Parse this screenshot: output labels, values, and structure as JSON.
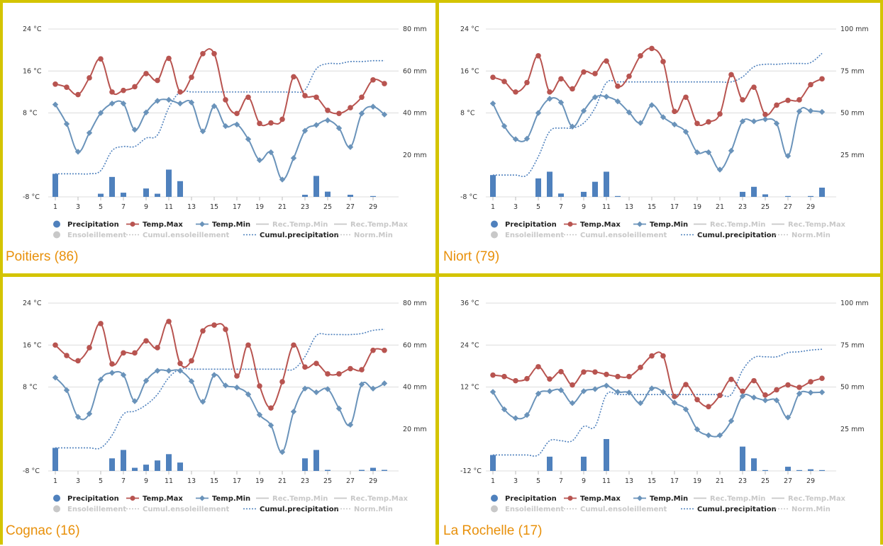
{
  "colors": {
    "frame": "#d4c400",
    "station": "#e8900a",
    "precip": "#4f81bd",
    "tmax": "#b85450",
    "tmin": "#6a93ba",
    "cumul": "#4f81bd",
    "grid": "#dcdcdc",
    "dim": "#c8c8c8"
  },
  "legend": {
    "row1": [
      {
        "label": "Precipitation",
        "type": "dot",
        "color": "#4f81bd",
        "active": true
      },
      {
        "label": "Temp.Max",
        "type": "line-dot",
        "color": "#b85450",
        "active": true
      },
      {
        "label": "Temp.Min",
        "type": "line-diamond",
        "color": "#6a93ba",
        "active": true
      },
      {
        "label": "Rec.Temp.Min",
        "type": "line",
        "color": "#c8c8c8",
        "active": false
      },
      {
        "label": "Rec.Temp.Max",
        "type": "line",
        "color": "#c8c8c8",
        "active": false
      }
    ],
    "row2": [
      {
        "label": "Ensoleillement",
        "type": "dot",
        "color": "#c8c8c8",
        "active": false
      },
      {
        "label": "Cumul.ensoleillement",
        "type": "dotted",
        "color": "#c8c8c8",
        "active": false
      },
      {
        "label": "Cumul.precipitation",
        "type": "dotted",
        "color": "#4f81bd",
        "active": true
      },
      {
        "label": "Norm.Min",
        "type": "dotted",
        "color": "#c8c8c8",
        "active": false
      }
    ]
  },
  "chart_data": [
    {
      "station": "Poitiers (86)",
      "type": "line",
      "x_ticks": [
        "1",
        "3",
        "5",
        "7",
        "9",
        "11",
        "13",
        "15",
        "17",
        "19",
        "21",
        "23",
        "25",
        "27",
        "29"
      ],
      "days": 30,
      "temp_axis": {
        "ticks": [
          "24 °C",
          "16 °C",
          "8 °C",
          "-8 °C"
        ],
        "tick_values": [
          24,
          16,
          8,
          -8
        ],
        "ylim": [
          -8,
          24
        ]
      },
      "precip_axis": {
        "ticks": [
          "80 mm",
          "60 mm",
          "40 mm",
          "20 mm"
        ],
        "tick_values": [
          80,
          60,
          40,
          20
        ],
        "ylim": [
          0,
          80
        ]
      },
      "series": [
        {
          "name": "Temp.Max",
          "values": [
            13.5,
            12.9,
            11.5,
            14.7,
            18.3,
            12,
            12.3,
            13,
            15.5,
            14.2,
            18.4,
            12,
            14.8,
            19.3,
            19.3,
            10.5,
            7.9,
            11,
            6,
            6.1,
            6.8,
            14.9,
            11.3,
            11,
            8.5,
            7.9,
            9,
            11,
            14.3,
            13.6
          ]
        },
        {
          "name": "Temp.Min",
          "values": [
            9.6,
            5.9,
            0.6,
            4.2,
            8,
            9.8,
            9.8,
            4.8,
            8.1,
            10.3,
            10.5,
            9.8,
            10,
            4.5,
            9.3,
            5.5,
            5.8,
            3,
            -1,
            0.5,
            -4.7,
            -0.6,
            4.6,
            5.7,
            6.6,
            5.1,
            1.5,
            7.9,
            9.2,
            7.7
          ]
        },
        {
          "name": "Precipitation",
          "values": [
            11,
            0,
            0,
            0,
            1.5,
            9.5,
            2,
            0,
            4,
            1.5,
            13,
            7.5,
            0,
            0,
            0,
            0,
            0,
            0,
            0,
            0,
            0,
            0,
            1,
            10,
            2.5,
            0,
            1,
            0,
            0.4,
            0
          ]
        },
        {
          "name": "Cumul.precipitation",
          "values": [
            11,
            11,
            11,
            11,
            12.5,
            22,
            24,
            24,
            28,
            29.5,
            42.5,
            50,
            50,
            50,
            50,
            50,
            50,
            50,
            50,
            50,
            50,
            50,
            51,
            61,
            63.5,
            63.5,
            64.5,
            64.5,
            64.9,
            64.9
          ]
        }
      ]
    },
    {
      "station": "Niort (79)",
      "type": "line",
      "x_ticks": [
        "1",
        "3",
        "5",
        "7",
        "9",
        "11",
        "13",
        "15",
        "17",
        "19",
        "21",
        "23",
        "25",
        "27",
        "29"
      ],
      "days": 30,
      "temp_axis": {
        "ticks": [
          "24 °C",
          "16 °C",
          "8 °C",
          "-8 °C"
        ],
        "tick_values": [
          24,
          16,
          8,
          -8
        ],
        "ylim": [
          -8,
          24
        ]
      },
      "precip_axis": {
        "ticks": [
          "100 mm",
          "75 mm",
          "50 mm",
          "25 mm"
        ],
        "tick_values": [
          100,
          75,
          50,
          25
        ],
        "ylim": [
          0,
          100
        ]
      },
      "series": [
        {
          "name": "Temp.Max",
          "values": [
            14.8,
            14,
            12,
            13.8,
            18.9,
            12,
            14.5,
            12.6,
            15.8,
            15.5,
            17.9,
            13.1,
            15,
            18.9,
            20.3,
            17.8,
            8.3,
            11,
            6,
            6.3,
            7.8,
            15.3,
            10.5,
            12.9,
            7.7,
            9.5,
            10.4,
            10.5,
            13.4,
            14.5
          ]
        },
        {
          "name": "Temp.Min",
          "values": [
            9.8,
            5.5,
            3,
            3.1,
            8,
            10.7,
            10,
            5.4,
            8.4,
            11,
            11.1,
            10.2,
            8.1,
            6.1,
            9.5,
            7.2,
            5.8,
            4.4,
            0.5,
            0.5,
            -2.8,
            0.8,
            6.4,
            6.4,
            6.8,
            6,
            -0.2,
            8.3,
            8.4,
            8.2
          ]
        },
        {
          "name": "Precipitation",
          "values": [
            13,
            0,
            0,
            0,
            11,
            15,
            2,
            0,
            3,
            9,
            15,
            0.5,
            0,
            0,
            0,
            0,
            0,
            0,
            0,
            0,
            0,
            0,
            3,
            6,
            1.5,
            0,
            0.5,
            0,
            0.5,
            5.5
          ]
        },
        {
          "name": "Cumul.precipitation",
          "values": [
            13,
            13,
            13,
            13,
            24,
            39,
            41,
            41,
            44,
            53,
            68,
            68.5,
            68.5,
            68.5,
            68.5,
            68.5,
            68.5,
            68.5,
            68.5,
            68.5,
            68.5,
            68.5,
            71.5,
            77.5,
            79,
            79,
            79.5,
            79.5,
            80,
            85.5
          ]
        }
      ]
    },
    {
      "station": "Cognac (16)",
      "type": "line",
      "x_ticks": [
        "1",
        "3",
        "5",
        "7",
        "9",
        "11",
        "13",
        "15",
        "17",
        "19",
        "21",
        "23",
        "25",
        "27",
        "29"
      ],
      "days": 30,
      "temp_axis": {
        "ticks": [
          "24 °C",
          "16 °C",
          "8 °C",
          "-8 °C"
        ],
        "tick_values": [
          24,
          16,
          8,
          -8
        ],
        "ylim": [
          -8,
          24
        ]
      },
      "precip_axis": {
        "ticks": [
          "80 mm",
          "60 mm",
          "40 mm",
          "20 mm"
        ],
        "tick_values": [
          80,
          60,
          40,
          20
        ],
        "ylim": [
          0,
          80
        ]
      },
      "series": [
        {
          "name": "Temp.Max",
          "values": [
            16,
            14,
            13,
            15.5,
            20.1,
            12.4,
            14.5,
            14.5,
            16.8,
            15.5,
            20.5,
            12.5,
            13,
            18.7,
            19.8,
            19,
            10.1,
            16,
            8.2,
            4,
            9,
            16,
            11.8,
            12.5,
            10.5,
            10.5,
            11.5,
            11.3,
            15,
            15
          ]
        },
        {
          "name": "Temp.Min",
          "values": [
            9.8,
            7.4,
            2.3,
            2.9,
            9.4,
            10.7,
            10.3,
            5.3,
            9.2,
            11.1,
            11.1,
            11.1,
            9.1,
            5.2,
            10.3,
            8.3,
            7.9,
            6.6,
            2.7,
            0.7,
            -4.4,
            3.3,
            7.7,
            7,
            7.6,
            3.9,
            0.8,
            8.5,
            7.7,
            8.7
          ]
        },
        {
          "name": "Precipitation",
          "values": [
            11,
            0,
            0,
            0,
            0,
            6,
            10,
            1.5,
            3,
            5,
            8,
            4,
            0,
            0,
            0,
            0,
            0,
            0,
            0,
            0,
            0,
            0,
            6,
            10,
            0.5,
            0,
            0,
            0.5,
            1.5,
            0.5
          ]
        },
        {
          "name": "Cumul.precipitation",
          "values": [
            11,
            11,
            11,
            11,
            11,
            17,
            27,
            28.5,
            31.5,
            36.5,
            44.5,
            48.5,
            48.5,
            48.5,
            48.5,
            48.5,
            48.5,
            48.5,
            48.5,
            48.5,
            48.5,
            48.5,
            54.5,
            64.5,
            65,
            65,
            65,
            65.5,
            67,
            67.5
          ]
        }
      ]
    },
    {
      "station": "La Rochelle (17)",
      "type": "line",
      "x_ticks": [
        "1",
        "3",
        "5",
        "7",
        "9",
        "11",
        "13",
        "15",
        "17",
        "19",
        "21",
        "23",
        "25",
        "27",
        "29"
      ],
      "days": 30,
      "temp_axis": {
        "ticks": [
          "36 °C",
          "24 °C",
          "12 °C",
          "-12 °C"
        ],
        "tick_values": [
          36,
          24,
          12,
          -12
        ],
        "ylim": [
          -12,
          36
        ]
      },
      "precip_axis": {
        "ticks": [
          "100 mm",
          "75 mm",
          "50 mm",
          "25 mm"
        ],
        "tick_values": [
          100,
          75,
          50,
          25
        ],
        "ylim": [
          0,
          100
        ]
      },
      "series": [
        {
          "name": "Temp.Max",
          "values": [
            15.4,
            15,
            13.8,
            14.4,
            17.8,
            14.3,
            16.4,
            12.6,
            16.3,
            16.3,
            15.6,
            15,
            15,
            17.6,
            20.9,
            20.9,
            9.3,
            12.7,
            8.4,
            6.4,
            9.6,
            14.2,
            10.8,
            13.8,
            9.7,
            11.2,
            12.6,
            11.9,
            13.5,
            14.5
          ]
        },
        {
          "name": "Temp.Min",
          "values": [
            10.6,
            5.6,
            3.1,
            4,
            10.1,
            10.8,
            11.1,
            7.4,
            10.8,
            11.4,
            12.4,
            10.6,
            10.4,
            7.4,
            11.6,
            10.6,
            7.5,
            5.6,
            -0.1,
            -1.8,
            -1.8,
            2.3,
            9.4,
            9,
            8.2,
            8.2,
            3.3,
            10.1,
            10.4,
            10.5
          ]
        },
        {
          "name": "Precipitation",
          "values": [
            9.5,
            0,
            0,
            0,
            0,
            8.5,
            0,
            0,
            8.5,
            0,
            19,
            0,
            0,
            0,
            0,
            0,
            0,
            0,
            0,
            0,
            0,
            0,
            14.5,
            7.5,
            0.5,
            0,
            2.5,
            0.5,
            1,
            0.5
          ]
        },
        {
          "name": "Cumul.precipitation",
          "values": [
            9.5,
            9.5,
            9.5,
            9.5,
            9.5,
            18,
            18,
            18,
            26.5,
            26.5,
            45.5,
            45.5,
            45.5,
            45.5,
            45.5,
            45.5,
            45.5,
            45.5,
            45.5,
            45.5,
            45.5,
            45.5,
            60,
            67.5,
            68,
            68,
            70.5,
            71,
            72,
            72.5
          ]
        }
      ]
    }
  ]
}
